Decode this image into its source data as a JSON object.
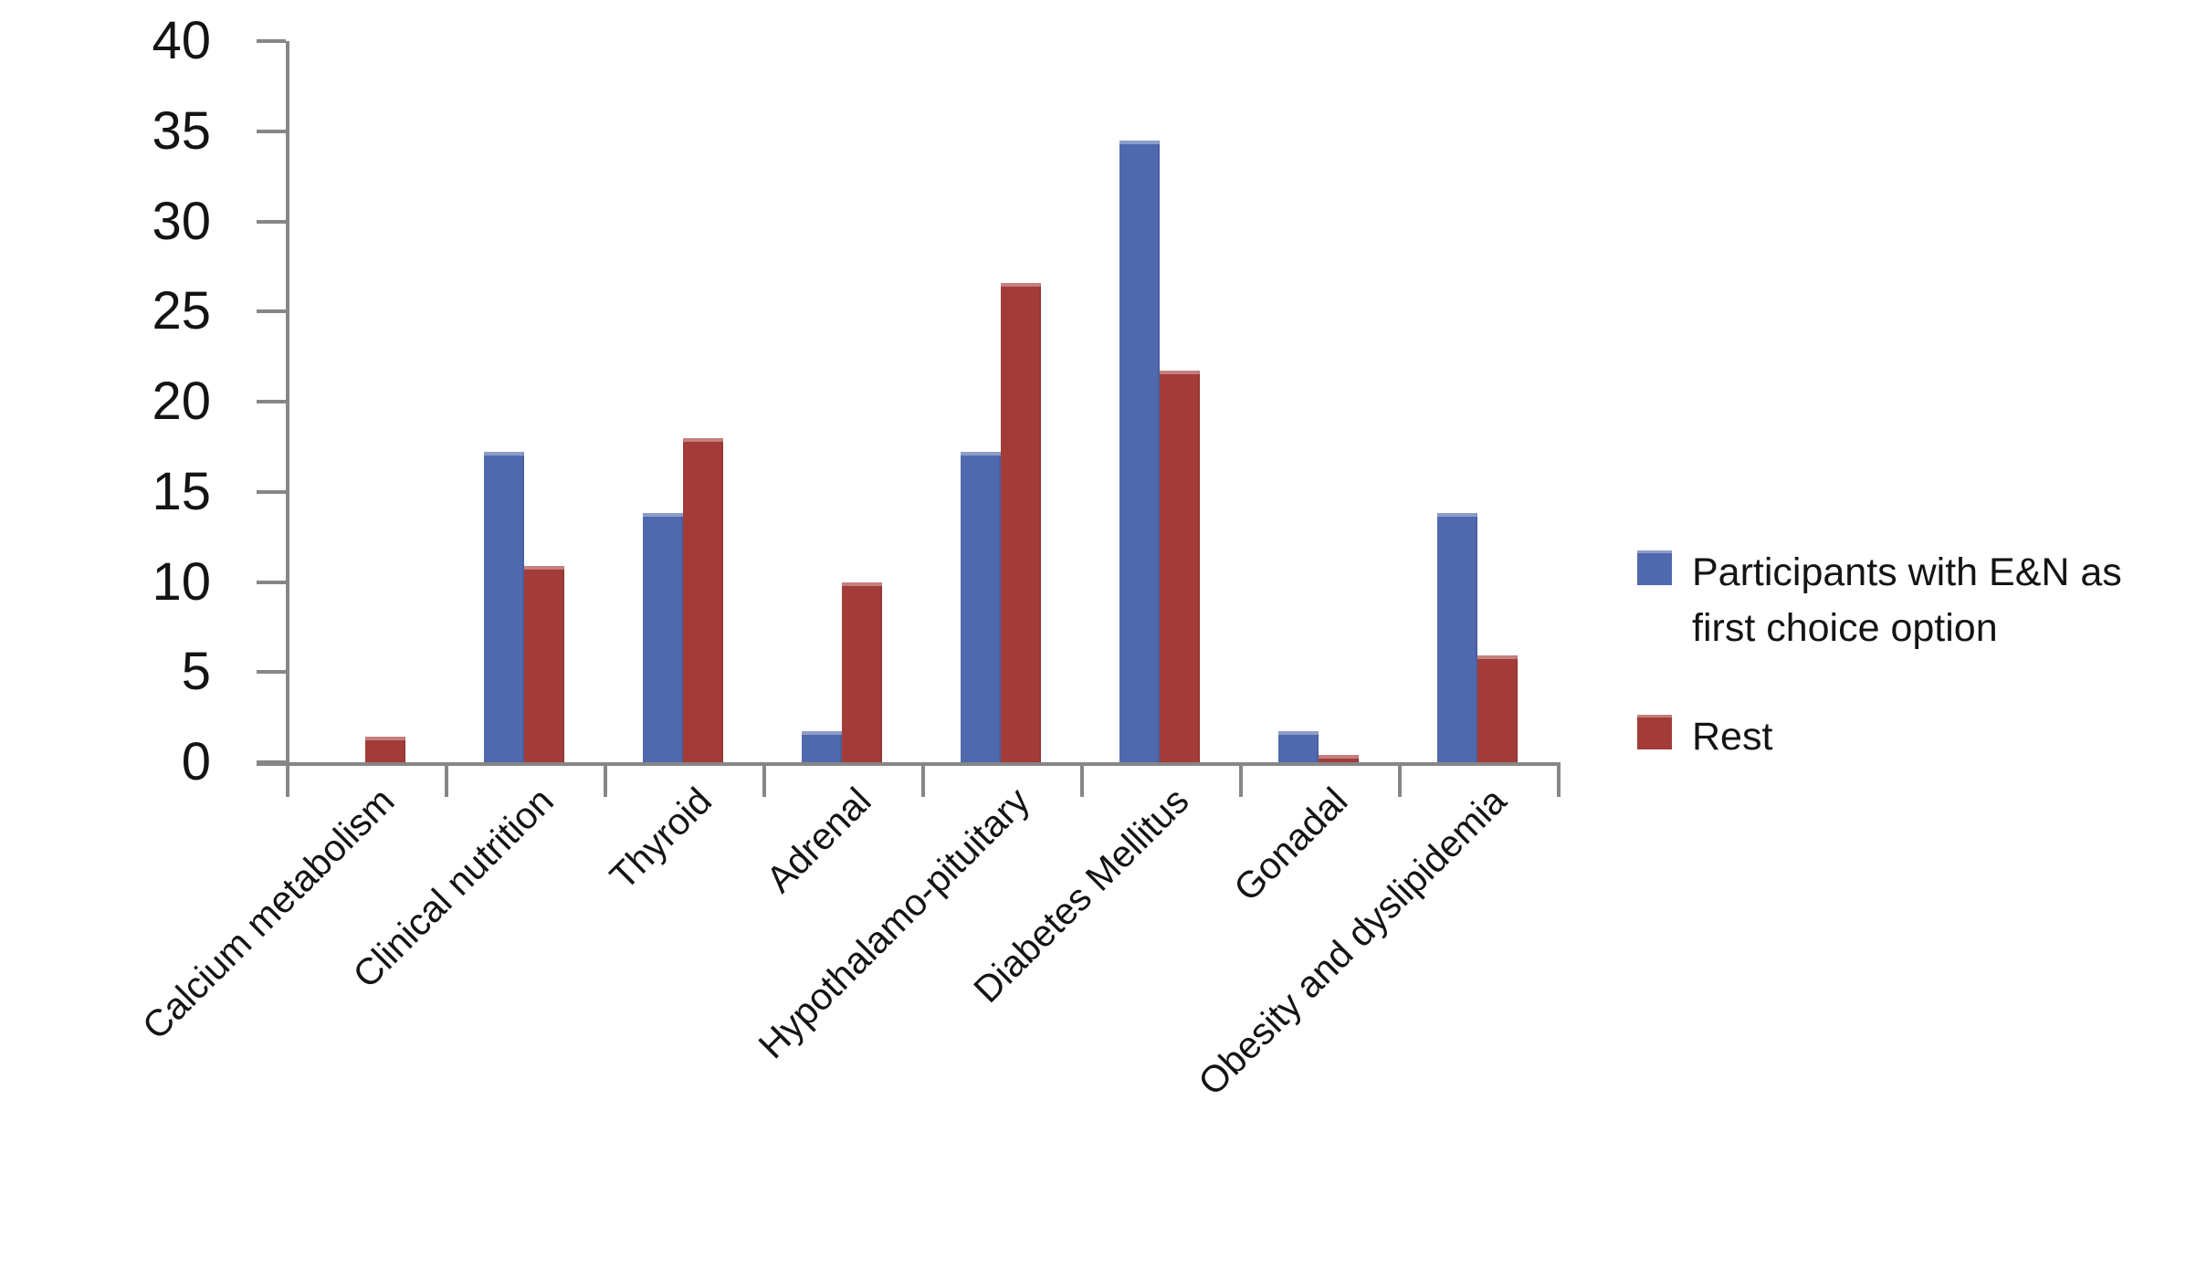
{
  "figure": {
    "background": "#ffffff",
    "axis_color": "#868686",
    "text_color": "#141414"
  },
  "legend": {
    "entries": [
      {
        "label": "Participants with E&N as first choice option",
        "color": "#5069AE"
      },
      {
        "label": "Rest",
        "color": "#A33C38"
      }
    ]
  },
  "chart_data": {
    "type": "bar",
    "title": "",
    "xlabel": "",
    "ylabel": "",
    "categories": [
      "Calcium metabolism",
      "Clinical nutrition",
      "Thyroid",
      "Adrenal",
      "Hypothalamo-pituitary",
      "Diabetes Mellitus",
      "Gonadal",
      "Obesity and dyslipidemia"
    ],
    "series": [
      {
        "name": "Participants with E&N as first choice option",
        "color": "#5069AE",
        "values": [
          0,
          17.2,
          13.8,
          1.7,
          17.2,
          34.5,
          1.7,
          13.8
        ]
      },
      {
        "name": "Rest",
        "color": "#A33C38",
        "values": [
          1.4,
          10.9,
          18,
          10,
          26.6,
          21.7,
          0.4,
          5.9
        ]
      }
    ],
    "ylim": [
      0,
      40
    ],
    "yticks": [
      0,
      5,
      10,
      15,
      20,
      25,
      30,
      35,
      40
    ],
    "grid": false,
    "legend_position": "right"
  }
}
